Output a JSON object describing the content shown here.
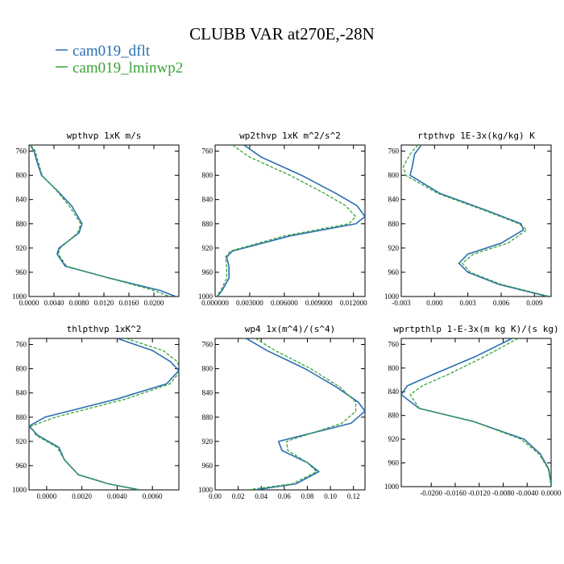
{
  "title": "CLUBB VAR at270E,-28N",
  "colors": {
    "dflt": "#2b6fb0",
    "lminwp2": "#3aa33a",
    "axis": "#000000"
  },
  "chart_data": [
    {
      "type": "line",
      "title": "wpthvp  1xK m/s",
      "xlim": [
        0,
        0.024
      ],
      "ylim": [
        1000,
        750
      ],
      "xticks": [
        0,
        0.004,
        0.008,
        0.012,
        0.016,
        0.02
      ],
      "xtick_labels": [
        "0.0000",
        "0.0040",
        "0.0080",
        "0.0120",
        "0.0160",
        "0.0200"
      ],
      "yticks": [
        760,
        800,
        840,
        880,
        920,
        960,
        1000
      ],
      "y": [
        750,
        760,
        775,
        800,
        825,
        850,
        880,
        895,
        920,
        930,
        950,
        970,
        990,
        1000
      ],
      "series": [
        {
          "name": "cam019_dflt",
          "style": "solid",
          "x": [
            0.0002,
            0.0008,
            0.0012,
            0.002,
            0.0045,
            0.0068,
            0.0085,
            0.008,
            0.0048,
            0.0045,
            0.0058,
            0.013,
            0.021,
            0.0235
          ]
        },
        {
          "name": "cam019_lminwp2",
          "style": "dashed",
          "x": [
            0.0003,
            0.001,
            0.0014,
            0.0021,
            0.0044,
            0.0064,
            0.0083,
            0.0078,
            0.005,
            0.0047,
            0.006,
            0.013,
            0.02,
            0.0225
          ]
        }
      ]
    },
    {
      "type": "line",
      "title": "wp2thvp  1xK m^2/s^2",
      "xlim": [
        0,
        0.013
      ],
      "ylim": [
        1000,
        750
      ],
      "xticks": [
        0,
        0.003,
        0.006,
        0.009,
        0.012
      ],
      "xtick_labels": [
        "0.000000",
        "0.003000",
        "0.006000",
        "0.009000",
        "0.012000"
      ],
      "yticks": [
        760,
        800,
        840,
        880,
        920,
        960,
        1000
      ],
      "y": [
        750,
        770,
        800,
        830,
        850,
        868,
        880,
        900,
        925,
        935,
        950,
        970,
        990,
        1000
      ],
      "series": [
        {
          "name": "cam019_dflt",
          "style": "solid",
          "x": [
            0.0025,
            0.004,
            0.0075,
            0.0105,
            0.0123,
            0.013,
            0.0122,
            0.0065,
            0.0015,
            0.001,
            0.0012,
            0.0012,
            0.0006,
            0.0002
          ]
        },
        {
          "name": "cam019_lminwp2",
          "style": "dashed",
          "x": [
            0.0015,
            0.003,
            0.0065,
            0.0095,
            0.0113,
            0.0122,
            0.0116,
            0.006,
            0.0013,
            0.0009,
            0.001,
            0.001,
            0.0005,
            0.0001
          ]
        }
      ]
    },
    {
      "type": "line",
      "title": "rtpthvp  1E-3x(kg/kg) K",
      "xlim": [
        -0.003,
        0.0105
      ],
      "ylim": [
        1000,
        750
      ],
      "xticks": [
        -0.003,
        0,
        0.003,
        0.006,
        0.009
      ],
      "xtick_labels": [
        "-0.003",
        "0.000",
        "0.003",
        "0.006",
        "0.009"
      ],
      "yticks": [
        760,
        800,
        840,
        880,
        920,
        960,
        1000
      ],
      "y": [
        750,
        765,
        785,
        800,
        830,
        860,
        880,
        890,
        912,
        930,
        945,
        960,
        980,
        1000
      ],
      "series": [
        {
          "name": "cam019_dflt",
          "style": "solid",
          "x": [
            -0.0012,
            -0.0018,
            -0.002,
            -0.0022,
            0.0005,
            0.005,
            0.0078,
            0.008,
            0.006,
            0.003,
            0.0022,
            0.003,
            0.0058,
            0.0102
          ]
        },
        {
          "name": "cam019_lminwp2",
          "style": "dashed",
          "x": [
            -0.0015,
            -0.0022,
            -0.0028,
            -0.0026,
            0.0003,
            0.0048,
            0.0076,
            0.0083,
            0.0066,
            0.0035,
            0.0025,
            0.0032,
            0.006,
            0.0104
          ]
        }
      ]
    },
    {
      "type": "line",
      "title": "thlpthvp  1xK^2",
      "xlim": [
        -0.001,
        0.0075
      ],
      "ylim": [
        1000,
        750
      ],
      "xticks": [
        0,
        0.002,
        0.004,
        0.006
      ],
      "xtick_labels": [
        "0.0000",
        "0.0020",
        "0.0040",
        "0.0060"
      ],
      "yticks": [
        760,
        800,
        840,
        880,
        920,
        960,
        1000
      ],
      "y": [
        750,
        770,
        788,
        803,
        825,
        850,
        880,
        895,
        910,
        930,
        950,
        975,
        990,
        1000
      ],
      "series": [
        {
          "name": "cam019_dflt",
          "style": "solid",
          "x": [
            0.004,
            0.006,
            0.007,
            0.0075,
            0.0068,
            0.004,
            -0.0001,
            -0.001,
            -0.0005,
            0.0007,
            0.001,
            0.0018,
            0.0035,
            0.0053
          ]
        },
        {
          "name": "cam019_lminwp2",
          "style": "dashed",
          "x": [
            0.0045,
            0.0066,
            0.0074,
            0.0076,
            0.007,
            0.0045,
            0.0005,
            -0.0009,
            -0.0006,
            0.0006,
            0.001,
            0.0018,
            0.0035,
            0.0052
          ]
        }
      ]
    },
    {
      "type": "line",
      "title": "wp4  1x(m^4)/(s^4)",
      "xlim": [
        0,
        0.13
      ],
      "ylim": [
        1000,
        750
      ],
      "xticks": [
        0,
        0.02,
        0.04,
        0.06,
        0.08,
        0.1,
        0.12
      ],
      "xtick_labels": [
        "0.00",
        "0.02",
        "0.04",
        "0.06",
        "0.08",
        "0.10",
        "0.12"
      ],
      "yticks": [
        760,
        800,
        840,
        880,
        920,
        960,
        1000
      ],
      "y": [
        750,
        770,
        800,
        830,
        855,
        870,
        890,
        920,
        935,
        955,
        970,
        990,
        1000
      ],
      "series": [
        {
          "name": "cam019_dflt",
          "style": "solid",
          "x": [
            0.027,
            0.045,
            0.078,
            0.105,
            0.124,
            0.13,
            0.118,
            0.055,
            0.058,
            0.08,
            0.09,
            0.07,
            0.035
          ]
        },
        {
          "name": "cam019_lminwp2",
          "style": "dashed",
          "x": [
            0.035,
            0.052,
            0.083,
            0.108,
            0.122,
            0.122,
            0.11,
            0.062,
            0.063,
            0.08,
            0.088,
            0.067,
            0.028
          ]
        }
      ]
    },
    {
      "type": "line",
      "title": "wprtpthlp  1-E-3x(m kg K)/(s kg)",
      "xlim": [
        -0.025,
        0
      ],
      "ylim": [
        1000,
        750
      ],
      "xticks": [
        -0.02,
        -0.016,
        -0.012,
        -0.008,
        -0.004,
        0
      ],
      "xtick_labels": [
        "-0.0200",
        "-0.0160",
        "-0.0120",
        "-0.0080",
        "-0.0040",
        "0.0000"
      ],
      "yticks": [
        760,
        800,
        840,
        880,
        920,
        960,
        1000
      ],
      "y": [
        750,
        780,
        810,
        830,
        845,
        868,
        890,
        920,
        945,
        970,
        990,
        1000
      ],
      "series": [
        {
          "name": "cam019_dflt",
          "style": "solid",
          "x": [
            -0.0065,
            -0.0125,
            -0.0195,
            -0.024,
            -0.025,
            -0.022,
            -0.013,
            -0.0045,
            -0.0018,
            -0.0004,
            -0.0001,
            0
          ]
        },
        {
          "name": "cam019_lminwp2",
          "style": "dashed",
          "x": [
            -0.0055,
            -0.011,
            -0.017,
            -0.0215,
            -0.0235,
            -0.022,
            -0.013,
            -0.005,
            -0.002,
            -0.0005,
            -0.0001,
            0
          ]
        }
      ]
    }
  ]
}
